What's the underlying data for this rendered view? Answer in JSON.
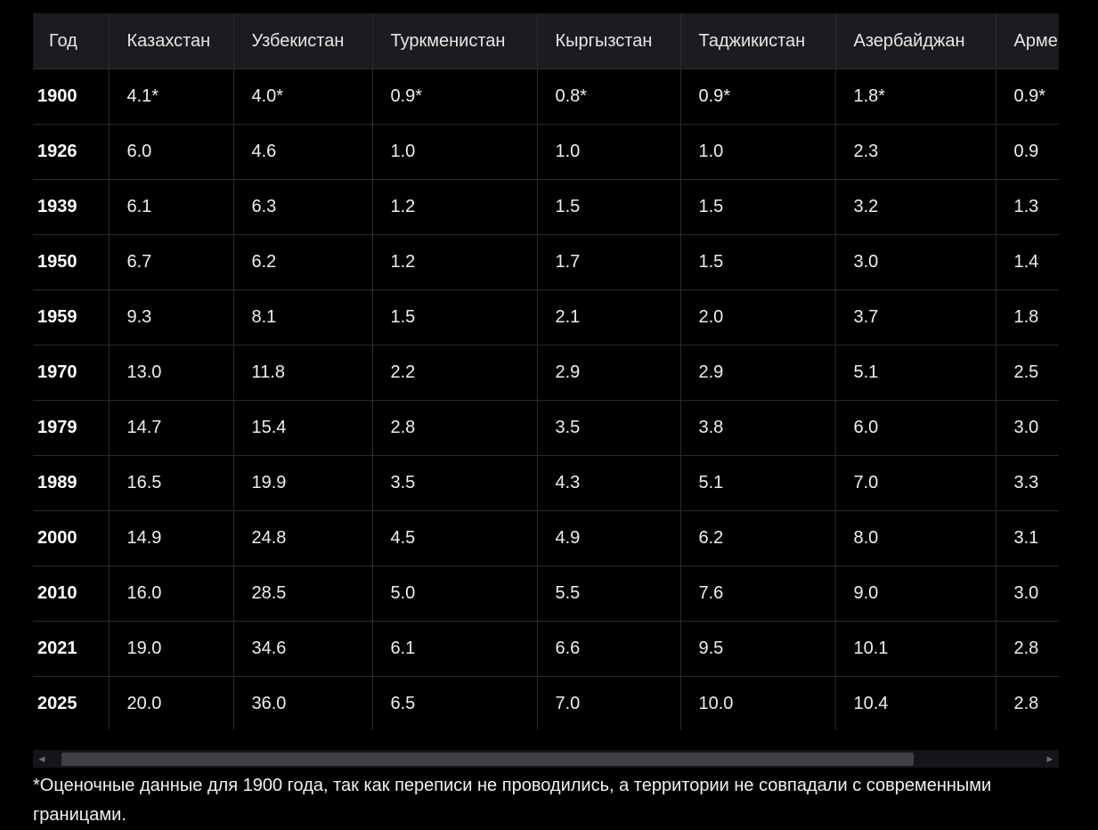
{
  "table": {
    "columns": [
      "Год",
      "Казахстан",
      "Узбекистан",
      "Туркменистан",
      "Кыргызстан",
      "Таджикистан",
      "Азербайджан",
      "Арме"
    ],
    "rows": [
      [
        "1900",
        "4.1*",
        "4.0*",
        "0.9*",
        "0.8*",
        "0.9*",
        "1.8*",
        "0.9*"
      ],
      [
        "1926",
        "6.0",
        "4.6",
        "1.0",
        "1.0",
        "1.0",
        "2.3",
        "0.9"
      ],
      [
        "1939",
        "6.1",
        "6.3",
        "1.2",
        "1.5",
        "1.5",
        "3.2",
        "1.3"
      ],
      [
        "1950",
        "6.7",
        "6.2",
        "1.2",
        "1.7",
        "1.5",
        "3.0",
        "1.4"
      ],
      [
        "1959",
        "9.3",
        "8.1",
        "1.5",
        "2.1",
        "2.0",
        "3.7",
        "1.8"
      ],
      [
        "1970",
        "13.0",
        "11.8",
        "2.2",
        "2.9",
        "2.9",
        "5.1",
        "2.5"
      ],
      [
        "1979",
        "14.7",
        "15.4",
        "2.8",
        "3.5",
        "3.8",
        "6.0",
        "3.0"
      ],
      [
        "1989",
        "16.5",
        "19.9",
        "3.5",
        "4.3",
        "5.1",
        "7.0",
        "3.3"
      ],
      [
        "2000",
        "14.9",
        "24.8",
        "4.5",
        "4.9",
        "6.2",
        "8.0",
        "3.1"
      ],
      [
        "2010",
        "16.0",
        "28.5",
        "5.0",
        "5.5",
        "7.6",
        "9.0",
        "3.0"
      ],
      [
        "2021",
        "19.0",
        "34.6",
        "6.1",
        "6.6",
        "9.5",
        "10.1",
        "2.8"
      ],
      [
        "2025",
        "20.0",
        "36.0",
        "6.5",
        "7.0",
        "10.0",
        "10.4",
        "2.8"
      ]
    ]
  },
  "scrollbar": {
    "left_arrow_icon": "chevron-left-icon",
    "right_arrow_icon": "chevron-right-icon"
  },
  "footnote": "*Оценочные данные для 1900 года, так как переписи не проводились, а территории не совпадали с современными границами.",
  "colors": {
    "background": "#000000",
    "header_background": "#1b1c1f",
    "grid_line": "#2b2b2b",
    "text": "#f1f1f1",
    "scroll_thumb": "#3e4046"
  }
}
